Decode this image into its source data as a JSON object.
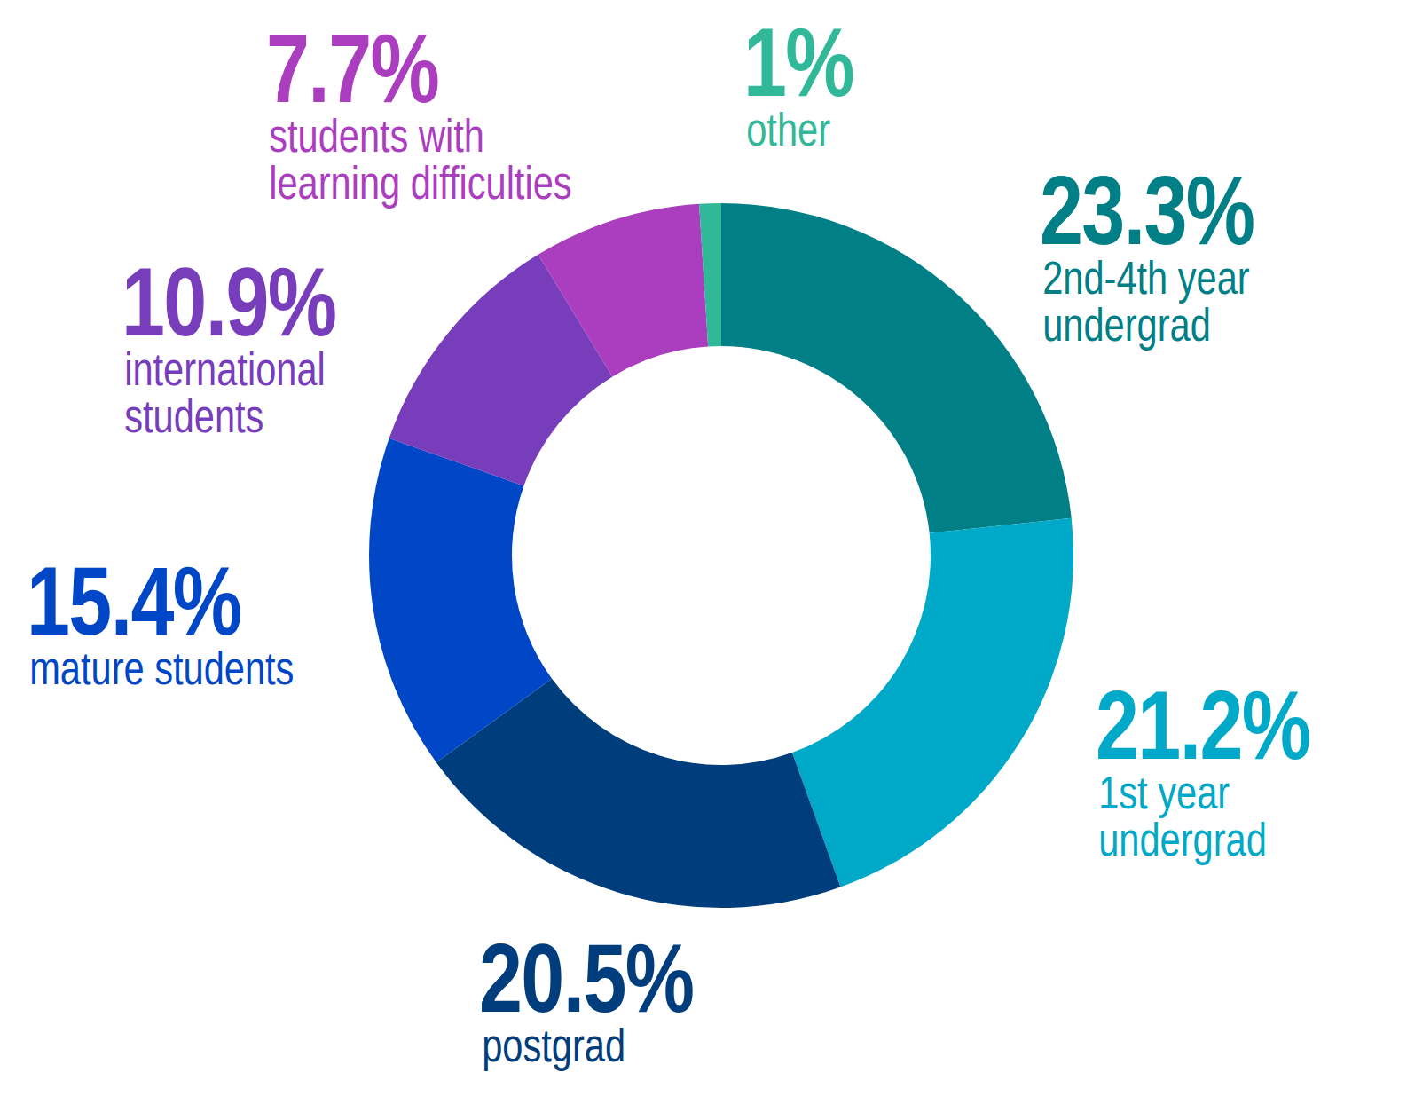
{
  "chart_data": {
    "type": "pie",
    "categories": [
      "2nd-4th year\nundergrad",
      "1st year\nundergrad",
      "postgrad",
      "mature students",
      "international\nstudents",
      "students with\nlearning difficulties",
      "other"
    ],
    "values": [
      23.3,
      21.2,
      20.5,
      15.4,
      10.9,
      7.7,
      1
    ],
    "value_labels": [
      "23.3%",
      "21.2%",
      "20.5%",
      "15.4%",
      "10.9%",
      "7.7%",
      "1%"
    ],
    "colors": [
      "#007f87",
      "#00a9c7",
      "#003d7c",
      "#0047c7",
      "#773dba",
      "#ab3ebe",
      "#31b898"
    ],
    "data_labels": true
  }
}
